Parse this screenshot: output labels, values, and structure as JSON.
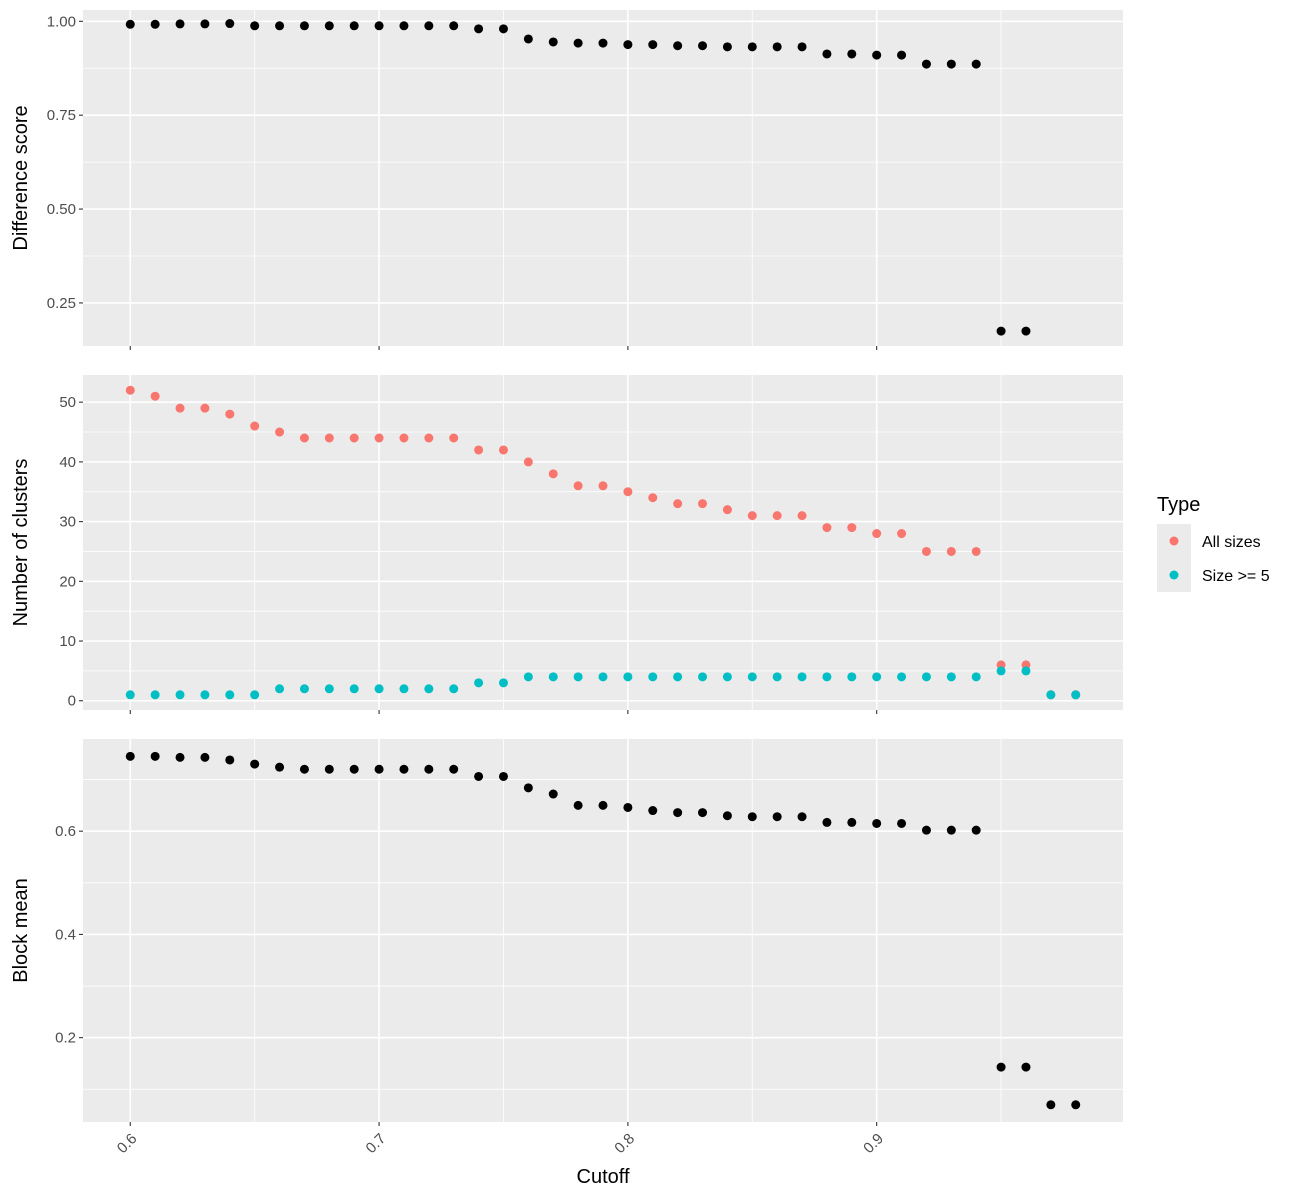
{
  "chart_data": [
    {
      "type": "scatter",
      "ylabel": "Difference score",
      "xlim": [
        0.581,
        0.999
      ],
      "ylim": [
        0.1353,
        1.0301
      ],
      "x_ticks": [
        0.6,
        0.7,
        0.8,
        0.9
      ],
      "y_ticks": [
        "1.00",
        "0.75",
        "0.50",
        "0.25"
      ],
      "grid": true,
      "series": [
        {
          "color": "#000000",
          "x": [
            0.6,
            0.61,
            0.62,
            0.63,
            0.64,
            0.65,
            0.66,
            0.67,
            0.68,
            0.69,
            0.7,
            0.71,
            0.72,
            0.73,
            0.74,
            0.75,
            0.76,
            0.77,
            0.78,
            0.79,
            0.8,
            0.81,
            0.82,
            0.83,
            0.84,
            0.85,
            0.86,
            0.87,
            0.88,
            0.89,
            0.9,
            0.91,
            0.92,
            0.93,
            0.94,
            0.95,
            0.96
          ],
          "y": [
            0.992,
            0.992,
            0.993,
            0.993,
            0.994,
            0.988,
            0.988,
            0.988,
            0.988,
            0.988,
            0.988,
            0.988,
            0.988,
            0.988,
            0.98,
            0.98,
            0.953,
            0.945,
            0.942,
            0.942,
            0.938,
            0.938,
            0.935,
            0.935,
            0.932,
            0.932,
            0.932,
            0.932,
            0.913,
            0.913,
            0.91,
            0.91,
            0.886,
            0.886,
            0.886,
            0.175,
            0.175
          ]
        }
      ]
    },
    {
      "type": "scatter",
      "ylabel": "Number of clusters",
      "xlim": [
        0.581,
        0.999
      ],
      "ylim": [
        -1.55,
        54.55
      ],
      "x_ticks": [
        0.6,
        0.7,
        0.8,
        0.9
      ],
      "y_ticks": [
        "50",
        "40",
        "30",
        "20",
        "10",
        "0"
      ],
      "grid": true,
      "legend": {
        "title": "Type",
        "placement": "right"
      },
      "series": [
        {
          "name": "All sizes",
          "color": "#F8766D",
          "x": [
            0.6,
            0.61,
            0.62,
            0.63,
            0.64,
            0.65,
            0.66,
            0.67,
            0.68,
            0.69,
            0.7,
            0.71,
            0.72,
            0.73,
            0.74,
            0.75,
            0.76,
            0.77,
            0.78,
            0.79,
            0.8,
            0.81,
            0.82,
            0.83,
            0.84,
            0.85,
            0.86,
            0.87,
            0.88,
            0.89,
            0.9,
            0.91,
            0.92,
            0.93,
            0.94,
            0.95,
            0.96,
            0.97,
            0.98
          ],
          "y": [
            52,
            51,
            49,
            49,
            48,
            46,
            45,
            44,
            44,
            44,
            44,
            44,
            44,
            44,
            42,
            42,
            40,
            38,
            36,
            36,
            35,
            34,
            33,
            33,
            32,
            31,
            31,
            31,
            29,
            29,
            28,
            28,
            25,
            25,
            25,
            6,
            6,
            1,
            1
          ]
        },
        {
          "name": "Size >= 5",
          "color": "#00BFC4",
          "x": [
            0.6,
            0.61,
            0.62,
            0.63,
            0.64,
            0.65,
            0.66,
            0.67,
            0.68,
            0.69,
            0.7,
            0.71,
            0.72,
            0.73,
            0.74,
            0.75,
            0.76,
            0.77,
            0.78,
            0.79,
            0.8,
            0.81,
            0.82,
            0.83,
            0.84,
            0.85,
            0.86,
            0.87,
            0.88,
            0.89,
            0.9,
            0.91,
            0.92,
            0.93,
            0.94,
            0.95,
            0.96,
            0.97,
            0.98
          ],
          "y": [
            1,
            1,
            1,
            1,
            1,
            1,
            2,
            2,
            2,
            2,
            2,
            2,
            2,
            2,
            3,
            3,
            4,
            4,
            4,
            4,
            4,
            4,
            4,
            4,
            4,
            4,
            4,
            4,
            4,
            4,
            4,
            4,
            4,
            4,
            4,
            5,
            5,
            1,
            1
          ]
        }
      ]
    },
    {
      "type": "scatter",
      "xlabel": "Cutoff",
      "ylabel": "Block mean",
      "xlim": [
        0.581,
        0.999
      ],
      "ylim": [
        0.0366,
        0.7786
      ],
      "x_ticks": [
        0.6,
        0.7,
        0.8,
        0.9
      ],
      "y_ticks": [
        "0.6",
        "0.4",
        "0.2"
      ],
      "grid": true,
      "series": [
        {
          "color": "#000000",
          "x": [
            0.6,
            0.61,
            0.62,
            0.63,
            0.64,
            0.65,
            0.66,
            0.67,
            0.68,
            0.69,
            0.7,
            0.71,
            0.72,
            0.73,
            0.74,
            0.75,
            0.76,
            0.77,
            0.78,
            0.79,
            0.8,
            0.81,
            0.82,
            0.83,
            0.84,
            0.85,
            0.86,
            0.87,
            0.88,
            0.89,
            0.9,
            0.91,
            0.92,
            0.93,
            0.94,
            0.95,
            0.96,
            0.97,
            0.98
          ],
          "y": [
            0.745,
            0.745,
            0.743,
            0.743,
            0.738,
            0.73,
            0.724,
            0.72,
            0.72,
            0.72,
            0.72,
            0.72,
            0.72,
            0.72,
            0.706,
            0.706,
            0.684,
            0.672,
            0.65,
            0.65,
            0.646,
            0.64,
            0.636,
            0.636,
            0.63,
            0.628,
            0.628,
            0.628,
            0.617,
            0.617,
            0.615,
            0.615,
            0.602,
            0.602,
            0.602,
            0.143,
            0.143,
            0.07,
            0.07
          ]
        }
      ]
    }
  ]
}
